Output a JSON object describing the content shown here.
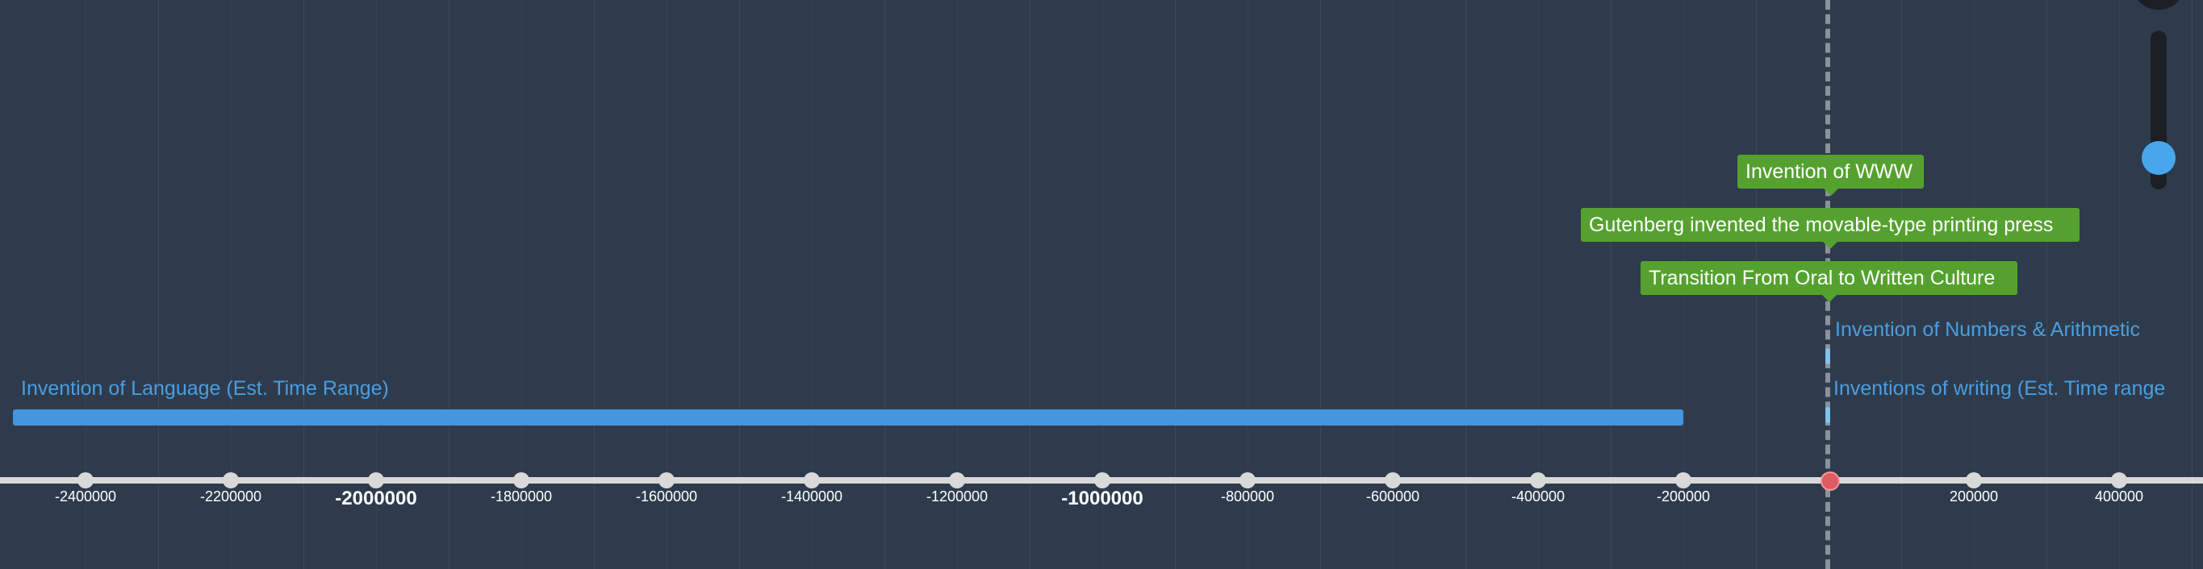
{
  "timeline": {
    "axis_ticks": [
      {
        "label": "-2400000",
        "major": false
      },
      {
        "label": "-2200000",
        "major": false
      },
      {
        "label": "-2000000",
        "major": true
      },
      {
        "label": "-1800000",
        "major": false
      },
      {
        "label": "-1600000",
        "major": false
      },
      {
        "label": "-1400000",
        "major": false
      },
      {
        "label": "-1200000",
        "major": false
      },
      {
        "label": "-1000000",
        "major": true
      },
      {
        "label": "-800000",
        "major": false
      },
      {
        "label": "-600000",
        "major": false
      },
      {
        "label": "-400000",
        "major": false
      },
      {
        "label": "-200000",
        "major": false
      },
      {
        "label": "",
        "major": false
      },
      {
        "label": "200000",
        "major": false
      },
      {
        "label": "400000",
        "major": false
      }
    ],
    "events": {
      "language_range": {
        "label": "Invention of Language (Est. Time Range)",
        "start": -2500000,
        "end": -200000
      },
      "writing_range": {
        "label": "Inventions of writing (Est. Time range"
      },
      "numbers": {
        "label": "Invention of Numbers & Arithmetic"
      },
      "oral_to_written": {
        "label": "Transition From Oral to Written Culture"
      },
      "gutenberg": {
        "label": "Gutenberg invented the movable-type printing press"
      },
      "www": {
        "label": "Invention of WWW"
      }
    },
    "colors": {
      "background": "#2e3b4c",
      "range_bar": "#4596dc",
      "event_text": "#4a9ee0",
      "highlight_label": "#55a12f",
      "now_marker": "#e05a63",
      "axis": "#d9d9d9"
    }
  },
  "zoom_slider": {
    "icon": "zoom-slider-knob"
  }
}
